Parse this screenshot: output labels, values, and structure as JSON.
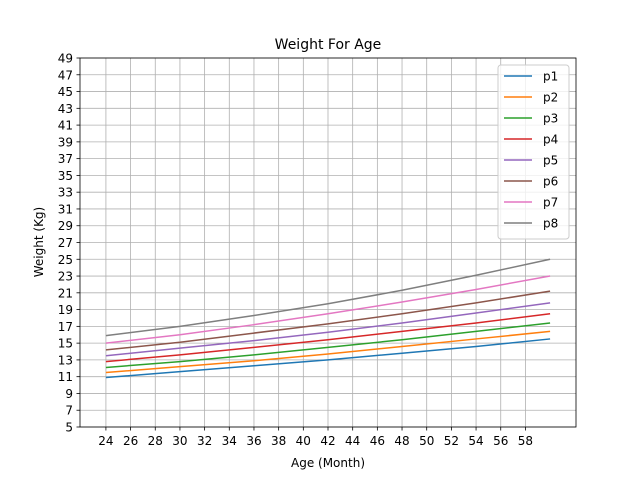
{
  "chart_data": {
    "type": "line",
    "title": "Weight For Age",
    "xlabel": "Age (Month)",
    "ylabel": "Weight (Kg)",
    "xlim": [
      21.9,
      62.1
    ],
    "ylim": [
      5,
      49
    ],
    "xticks": [
      24,
      26,
      28,
      30,
      32,
      34,
      36,
      38,
      40,
      42,
      44,
      46,
      48,
      50,
      52,
      54,
      56,
      58
    ],
    "yticks": [
      5,
      7,
      9,
      11,
      13,
      15,
      17,
      19,
      21,
      23,
      25,
      27,
      29,
      31,
      33,
      35,
      37,
      39,
      41,
      43,
      45,
      47,
      49
    ],
    "grid": true,
    "legend_position": "top-right",
    "x": [
      24,
      30,
      36,
      42,
      48,
      54,
      60
    ],
    "series": [
      {
        "name": "p1",
        "color": "#1f77b4",
        "values": [
          10.9,
          11.6,
          12.3,
          13.0,
          13.8,
          14.6,
          15.5
        ]
      },
      {
        "name": "p2",
        "color": "#ff7f0e",
        "values": [
          11.5,
          12.2,
          12.9,
          13.7,
          14.6,
          15.5,
          16.4
        ]
      },
      {
        "name": "p3",
        "color": "#2ca02c",
        "values": [
          12.1,
          12.8,
          13.6,
          14.5,
          15.4,
          16.4,
          17.4
        ]
      },
      {
        "name": "p4",
        "color": "#d62728",
        "values": [
          12.8,
          13.6,
          14.5,
          15.4,
          16.4,
          17.4,
          18.5
        ]
      },
      {
        "name": "p5",
        "color": "#9467bd",
        "values": [
          13.5,
          14.4,
          15.3,
          16.3,
          17.4,
          18.6,
          19.8
        ]
      },
      {
        "name": "p6",
        "color": "#8c564b",
        "values": [
          14.2,
          15.1,
          16.2,
          17.3,
          18.5,
          19.8,
          21.2
        ]
      },
      {
        "name": "p7",
        "color": "#e377c2",
        "values": [
          15.0,
          16.0,
          17.2,
          18.5,
          19.9,
          21.4,
          23.0
        ]
      },
      {
        "name": "p8",
        "color": "#7f7f7f",
        "values": [
          15.9,
          17.0,
          18.3,
          19.7,
          21.3,
          23.1,
          25.0
        ]
      }
    ]
  }
}
